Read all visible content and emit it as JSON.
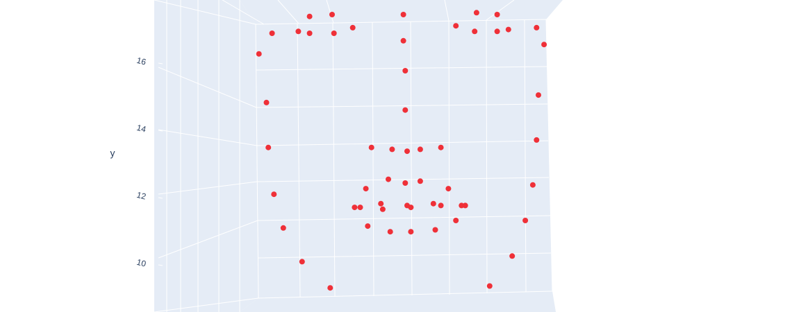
{
  "chart_data": {
    "type": "scatter3d",
    "y_axis_title": "y",
    "yticks": [
      10,
      12,
      14,
      16
    ],
    "marker_color": "#ef3038",
    "x": [
      2.8,
      4.0,
      7.8,
      11.7,
      12.8,
      0.8,
      2.2,
      2.8,
      4.1,
      5.1,
      7.8,
      10.6,
      11.6,
      12.8,
      13.4,
      14.9,
      15.3,
      0.1,
      7.9,
      0.5,
      15.0,
      7.9,
      0.6,
      6.1,
      7.2,
      8.0,
      8.7,
      9.8,
      14.9,
      7.0,
      7.9,
      8.7,
      5.8,
      10.2,
      14.7,
      0.9,
      6.6,
      5.2,
      5.5,
      6.7,
      8.0,
      8.2,
      9.4,
      9.8,
      10.9,
      11.1,
      10.6,
      5.9,
      7.1,
      8.2,
      9.5,
      14.3,
      1.4,
      13.6,
      2.4,
      3.9,
      12.4
    ],
    "y": [
      20.9,
      21.0,
      21.0,
      21.1,
      21.0,
      20.0,
      20.1,
      20.0,
      20.0,
      20.3,
      19.6,
      20.4,
      20.1,
      20.1,
      20.2,
      20.3,
      19.4,
      18.9,
      18.0,
      16.3,
      16.7,
      15.9,
      13.9,
      13.9,
      13.8,
      13.7,
      13.8,
      13.9,
      14.3,
      12.2,
      12.0,
      12.1,
      11.7,
      11.7,
      11.9,
      11.4,
      10.9,
      10.7,
      10.7,
      10.6,
      10.8,
      10.7,
      10.9,
      10.8,
      10.8,
      10.8,
      10.0,
      9.7,
      9.4,
      9.4,
      9.5,
      10.0,
      9.6,
      8.1,
      7.8,
      6.4,
      6.5
    ]
  }
}
